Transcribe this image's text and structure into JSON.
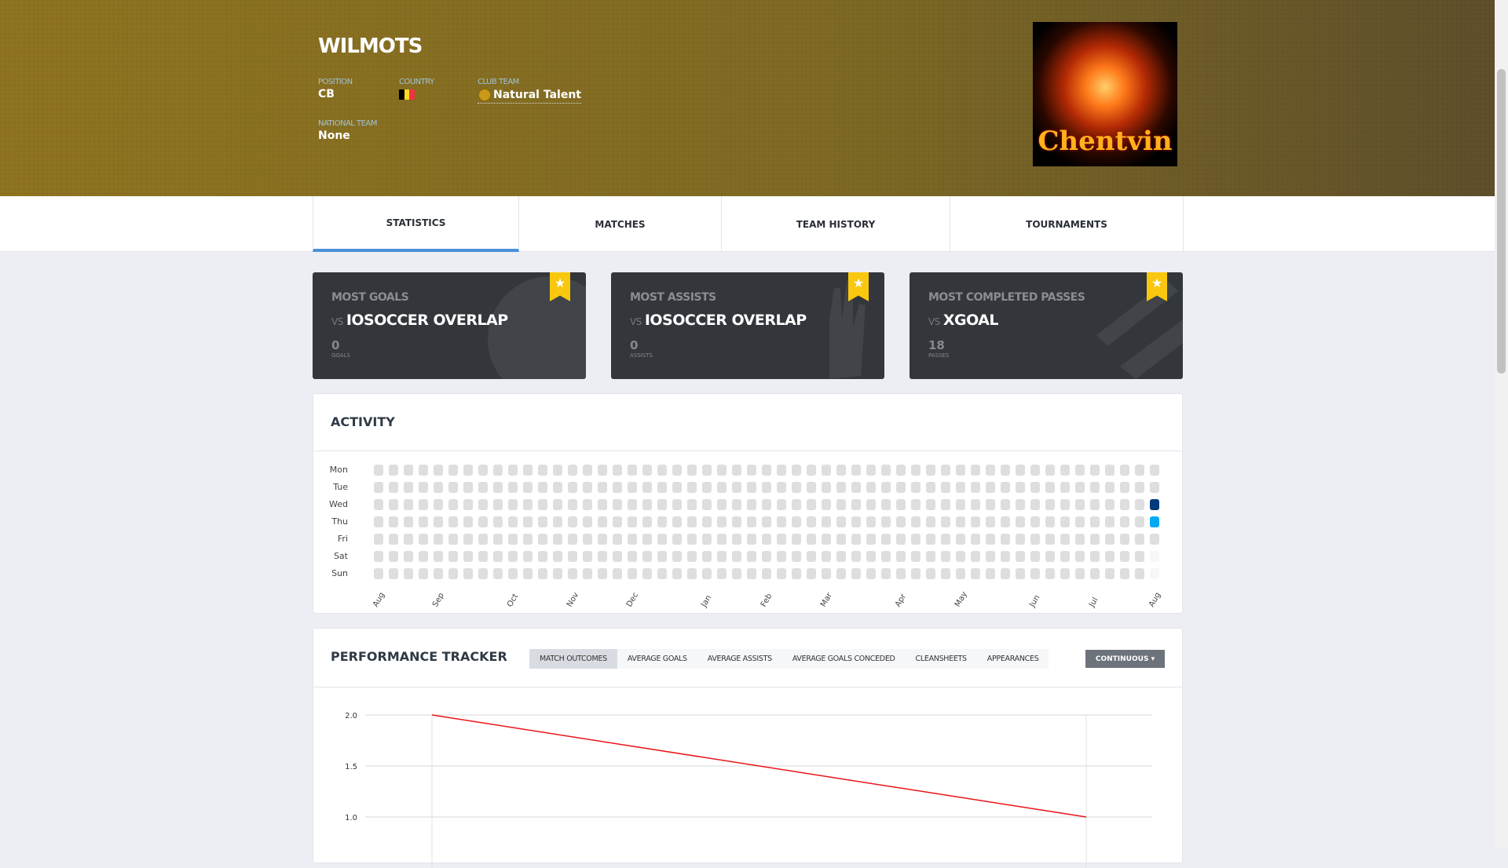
{
  "player": {
    "name": "WILMOTS",
    "position_label": "POSITION",
    "position": "CB",
    "country_label": "COUNTRY",
    "country_flag": [
      "#000000",
      "#fdda24",
      "#ef3340"
    ],
    "club_label": "CLUB TEAM",
    "club": "Natural Talent",
    "national_label": "NATIONAL TEAM",
    "national": "None"
  },
  "logo": {
    "text": "Chentvin"
  },
  "tabs": [
    {
      "label": "STATISTICS",
      "active": true
    },
    {
      "label": "MATCHES"
    },
    {
      "label": "TEAM HISTORY"
    },
    {
      "label": "TOURNAMENTS"
    }
  ],
  "cards": [
    {
      "title": "MOST GOALS",
      "vs": "VS",
      "opponent": "IOSOCCER OVERLAP",
      "value": "0",
      "unit": "GOALS",
      "icon": "soccer-ball-icon"
    },
    {
      "title": "MOST ASSISTS",
      "vs": "VS",
      "opponent": "IOSOCCER OVERLAP",
      "value": "0",
      "unit": "ASSISTS",
      "icon": "glove-icon"
    },
    {
      "title": "MOST COMPLETED PASSES",
      "vs": "VS",
      "opponent": "XGOAL",
      "value": "18",
      "unit": "PASSES",
      "icon": "stripes-icon"
    }
  ],
  "activity": {
    "title": "ACTIVITY",
    "days": [
      "Mon",
      "Tue",
      "Wed",
      "Thu",
      "Fri",
      "Sat",
      "Sun"
    ],
    "weeks": 53,
    "months": [
      {
        "label": "Aug",
        "week": 0
      },
      {
        "label": "Sep",
        "week": 4
      },
      {
        "label": "Oct",
        "week": 9
      },
      {
        "label": "Nov",
        "week": 13
      },
      {
        "label": "Dec",
        "week": 17
      },
      {
        "label": "Jan",
        "week": 22
      },
      {
        "label": "Feb",
        "week": 26
      },
      {
        "label": "Mar",
        "week": 30
      },
      {
        "label": "Apr",
        "week": 35
      },
      {
        "label": "May",
        "week": 39
      },
      {
        "label": "Jun",
        "week": 44
      },
      {
        "label": "Jul",
        "week": 48
      },
      {
        "label": "Aug",
        "week": 52
      }
    ],
    "active": [
      {
        "week": 52,
        "day": "Wed",
        "color": "#003a7a"
      },
      {
        "week": 52,
        "day": "Thu",
        "color": "#03a9f4"
      }
    ],
    "future": [
      {
        "week": 52,
        "day": "Sat"
      },
      {
        "week": 52,
        "day": "Sun"
      }
    ],
    "colors": {
      "empty": "#dedede",
      "future": "#f7f7f7"
    }
  },
  "performance": {
    "title": "PERFORMANCE TRACKER",
    "metrics": [
      "MATCH OUTCOMES",
      "AVERAGE GOALS",
      "AVERAGE ASSISTS",
      "AVERAGE GOALS CONCEDED",
      "CLEANSHEETS",
      "APPEARANCES"
    ],
    "active_metric": "MATCH OUTCOMES",
    "mode": "CONTINUOUS"
  },
  "chart_data": {
    "type": "line",
    "y_ticks": [
      "2.0",
      "1.5",
      "1.0"
    ],
    "series": [
      {
        "values": [
          2.0,
          1.0
        ],
        "color": "#e8141a"
      }
    ],
    "grid": true
  }
}
